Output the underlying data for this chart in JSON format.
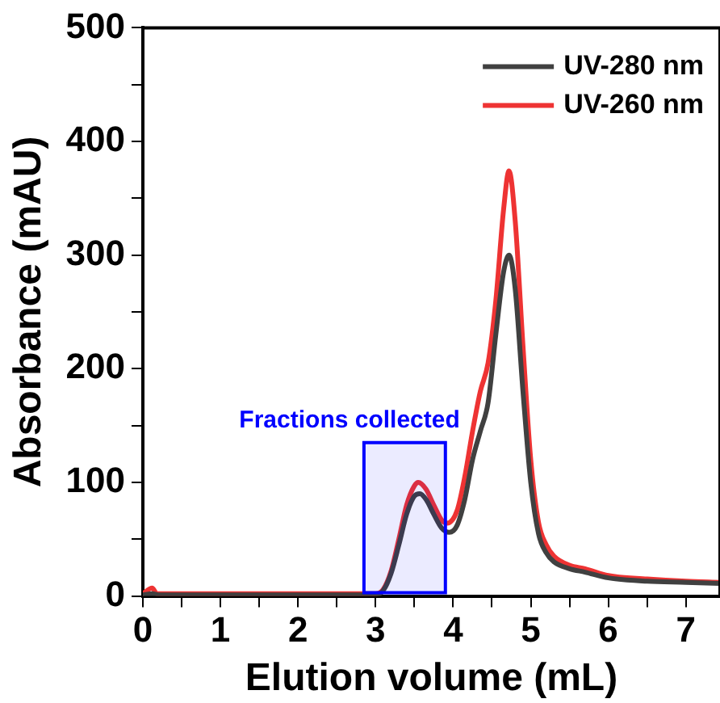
{
  "chart_data": {
    "type": "line",
    "xlabel": "Elution volume (mL)",
    "ylabel": "Absorbance (mAU)",
    "xlim": [
      0,
      7.44
    ],
    "ylim": [
      0,
      500
    ],
    "xticks": [
      0,
      {
        "value": 0.5,
        "label": null
      },
      1,
      {
        "value": 1.5,
        "label": null
      },
      2,
      {
        "value": 2.5,
        "label": null
      },
      3,
      {
        "value": 3.5,
        "label": null
      },
      4,
      {
        "value": 4.5,
        "label": null
      },
      5,
      {
        "value": 5.5,
        "label": null
      },
      6,
      {
        "value": 6.5,
        "label": null
      },
      7
    ],
    "yticks": [
      0,
      {
        "value": 50,
        "label": null
      },
      100,
      {
        "value": 150,
        "label": null
      },
      200,
      {
        "value": 250,
        "label": null
      },
      300,
      {
        "value": 350,
        "label": null
      },
      400,
      {
        "value": 450,
        "label": null
      },
      500
    ],
    "grid": false,
    "legend": "top right",
    "marker": "none",
    "line_style": "solid",
    "bands": [
      {
        "axis": "x",
        "from": 2.85,
        "to": 3.9,
        "label": "Fractions collected",
        "color": "#0000ff"
      }
    ],
    "series": [
      {
        "name": "UV-280 nm",
        "color": "#404040",
        "x": [
          0,
          0.12,
          0.2,
          2.9,
          3.0,
          3.1,
          3.2,
          3.3,
          3.4,
          3.5,
          3.57,
          3.65,
          3.75,
          3.85,
          3.95,
          4.05,
          4.15,
          4.25,
          4.35,
          4.45,
          4.55,
          4.65,
          4.72,
          4.8,
          4.9,
          5.0,
          5.1,
          5.2,
          5.3,
          5.5,
          5.7,
          6.0,
          6.5,
          7.0,
          7.44
        ],
        "values": [
          1,
          2,
          1,
          1,
          1,
          5,
          20,
          45,
          72,
          88,
          90,
          85,
          72,
          60,
          56,
          62,
          85,
          120,
          145,
          170,
          230,
          285,
          300,
          270,
          180,
          100,
          55,
          38,
          30,
          24,
          21,
          16,
          13,
          12,
          11
        ]
      },
      {
        "name": "UV-260 nm",
        "color": "#ee3333",
        "x": [
          0,
          0.12,
          0.18,
          0.3,
          2.9,
          3.0,
          3.1,
          3.2,
          3.3,
          3.4,
          3.5,
          3.55,
          3.65,
          3.75,
          3.85,
          3.92,
          4.05,
          4.15,
          4.25,
          4.35,
          4.45,
          4.55,
          4.65,
          4.72,
          4.8,
          4.9,
          5.0,
          5.1,
          5.2,
          5.3,
          5.5,
          5.7,
          6.0,
          6.5,
          7.0,
          7.44
        ],
        "values": [
          2,
          7,
          2,
          2,
          2,
          2,
          6,
          22,
          50,
          80,
          97,
          100,
          94,
          80,
          67,
          64,
          75,
          105,
          145,
          180,
          205,
          260,
          340,
          374,
          330,
          220,
          120,
          65,
          45,
          35,
          27,
          24,
          18,
          15,
          13,
          12
        ]
      }
    ]
  }
}
